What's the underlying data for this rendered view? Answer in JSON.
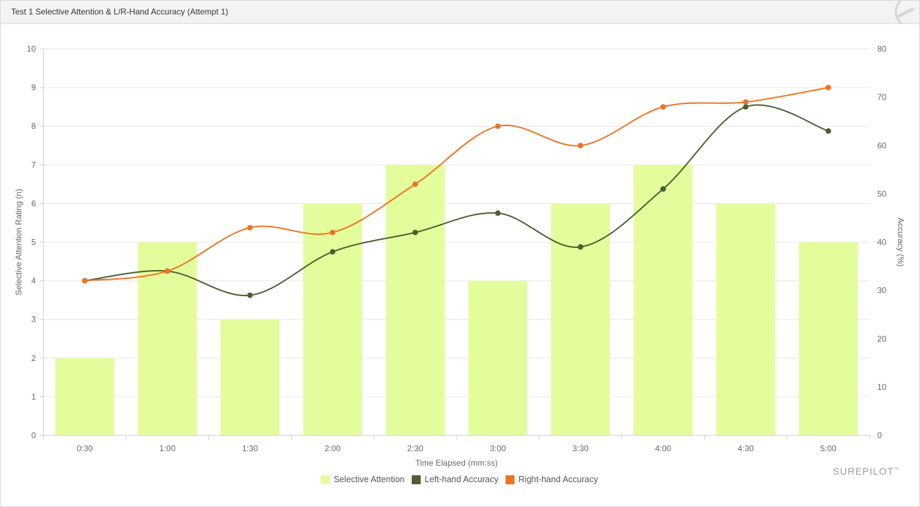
{
  "header": {
    "title": "Test 1 Selective Attention & L/R-Hand Accuracy (Attempt 1)",
    "icon": "pencil-logo-icon"
  },
  "brand": "SUREPILOT",
  "colors": {
    "selective_attention": "#e3fd9d",
    "left_hand": "#48612f",
    "right_hand": "#ec7424",
    "grid": "#e6e6e6"
  },
  "chart_data": {
    "type": "bar",
    "categories": [
      "0:30",
      "1:00",
      "1:30",
      "2:00",
      "2:30",
      "3:00",
      "3:30",
      "4:00",
      "4:30",
      "5:00"
    ],
    "xlabel": "Time Elapsed (mm:ss)",
    "ylabel": "Selective Attention Rating (n)",
    "ylabel_right": "Accuracy (%)",
    "ylim": [
      0,
      10
    ],
    "ylim_right": [
      0,
      80
    ],
    "yticks": [
      "0",
      "1",
      "2",
      "3",
      "4",
      "5",
      "6",
      "7",
      "8",
      "9",
      "10"
    ],
    "yticks_right": [
      "0",
      "10",
      "20",
      "30",
      "40",
      "50",
      "60",
      "70",
      "80"
    ],
    "grid": true,
    "legend_position": "bottom-center",
    "series": [
      {
        "name": "Selective Attention",
        "type": "bar",
        "axis": "left",
        "values": [
          2,
          5,
          3,
          6,
          7,
          4,
          6,
          7,
          6,
          5
        ]
      },
      {
        "name": "Left-hand Accuracy",
        "type": "line",
        "axis": "right",
        "values": [
          32,
          34,
          29,
          38,
          42,
          46,
          39,
          51,
          68,
          63
        ]
      },
      {
        "name": "Right-hand Accuracy",
        "type": "line",
        "axis": "right",
        "values": [
          32,
          34,
          43,
          42,
          52,
          64,
          60,
          68,
          69,
          72
        ]
      }
    ]
  }
}
